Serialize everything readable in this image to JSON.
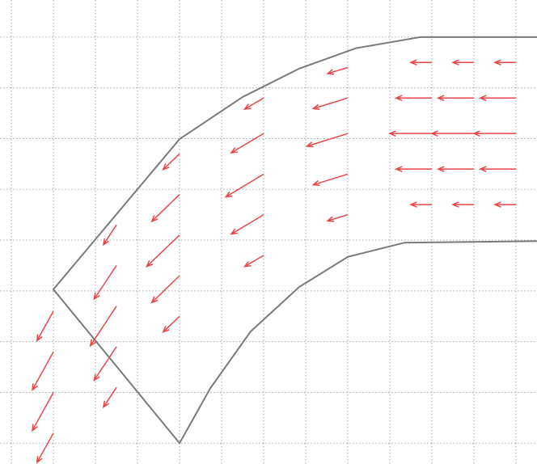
{
  "chart_data": {
    "type": "quiver",
    "xlim": [
      -0.27,
      12.5
    ],
    "ylim": [
      -0.41,
      8.73
    ],
    "xticks": [
      0,
      1,
      2,
      3,
      4,
      5,
      6,
      7,
      8,
      9,
      10,
      11,
      12
    ],
    "yticks": [
      0,
      1,
      2,
      3,
      4,
      5,
      6,
      7,
      8
    ],
    "grid": true,
    "color": "#e8474a",
    "x": [
      12,
      12,
      12,
      12,
      12,
      11,
      11,
      11,
      11,
      11,
      10,
      10,
      10,
      10,
      10,
      8,
      8,
      8,
      8,
      8,
      6,
      6,
      6,
      6,
      6,
      4,
      4,
      4,
      4,
      4,
      2.5,
      2.5,
      2.5,
      2.5,
      2.5,
      1,
      1,
      1,
      1
    ],
    "y": [
      7.5,
      6.8,
      6.1,
      5.4,
      4.7,
      7.5,
      6.8,
      6.1,
      5.4,
      4.7,
      7.5,
      6.8,
      6.1,
      5.4,
      4.7,
      7.4,
      6.8,
      6.1,
      5.3,
      4.5,
      6.8,
      6.1,
      5.3,
      4.5,
      3.7,
      5.7,
      4.9,
      4.1,
      3.3,
      2.5,
      4.3,
      3.5,
      2.7,
      1.9,
      1.1,
      2.6,
      1.8,
      1.0,
      0.2
    ],
    "u": [
      -0.5,
      -0.85,
      -1,
      -0.85,
      -0.5,
      -0.5,
      -0.85,
      -1,
      -0.85,
      -0.5,
      -0.5,
      -0.85,
      -1,
      -0.85,
      -0.5,
      -0.48,
      -0.82,
      -0.97,
      -0.82,
      -0.48,
      -0.45,
      -0.77,
      -0.9,
      -0.77,
      -0.45,
      -0.39,
      -0.66,
      -0.78,
      -0.66,
      -0.39,
      -0.31,
      -0.53,
      -0.62,
      -0.53,
      -0.31,
      -0.39,
      -0.5,
      -0.5,
      -0.39
    ],
    "v": [
      0,
      0,
      0,
      0,
      0,
      0,
      0,
      0,
      0,
      0,
      0,
      0,
      0,
      0,
      0,
      -0.12,
      -0.21,
      -0.25,
      -0.21,
      -0.12,
      -0.22,
      -0.38,
      -0.45,
      -0.38,
      -0.22,
      -0.31,
      -0.53,
      -0.62,
      -0.53,
      -0.31,
      -0.39,
      -0.66,
      -0.78,
      -0.66,
      -0.39,
      -0.58,
      -0.75,
      -0.75,
      -0.58
    ],
    "boundary": {
      "color": "#7a7a7a",
      "x": [
        12.5,
        9.73,
        8.19,
        6.85,
        5.5,
        4,
        1,
        4,
        4.73,
        5.69,
        6.85,
        8,
        9.35,
        12.5
      ],
      "y": [
        8,
        8,
        7.78,
        7.38,
        6.82,
        5.99,
        3.03,
        0,
        1.08,
        2.2,
        3.08,
        3.67,
        3.95,
        3.98
      ]
    }
  }
}
